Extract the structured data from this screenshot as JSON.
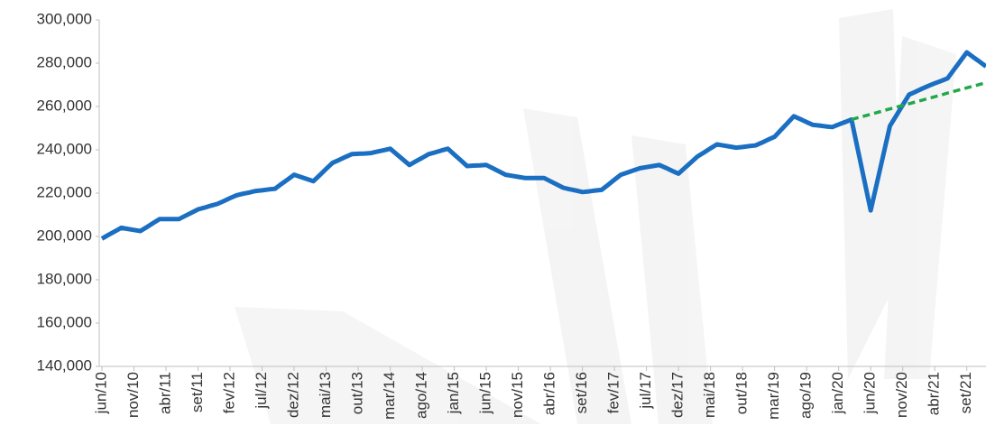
{
  "chart_data": {
    "type": "line",
    "categories": [
      "jun/10",
      null,
      null,
      null,
      null,
      "nov/10",
      null,
      null,
      null,
      null,
      "abr/11",
      null,
      null,
      null,
      null,
      "set/11",
      null,
      null,
      null,
      null,
      "fev/12",
      null,
      null,
      null,
      null,
      "jul/12",
      null,
      null,
      null,
      null,
      "dez/12",
      null,
      null,
      null,
      null,
      "mai/13",
      null,
      null,
      null,
      null,
      "out/13",
      null,
      null,
      null,
      null,
      "mar/14",
      null,
      null,
      null,
      null,
      "ago/14",
      null,
      null,
      null,
      null,
      "jan/15",
      null,
      null,
      null,
      null,
      "jun/15",
      null,
      null,
      null,
      null,
      "nov/15",
      null,
      null,
      null,
      null,
      "abr/16",
      null,
      null,
      null,
      null,
      "set/16",
      null,
      null,
      null,
      null,
      "fev/17",
      null,
      null,
      null,
      null,
      "jul/17",
      null,
      null,
      null,
      null,
      "dez/17",
      null,
      null,
      null,
      null,
      "mai/18",
      null,
      null,
      null,
      null,
      "out/18",
      null,
      null,
      null,
      null,
      "mar/19",
      null,
      null,
      null,
      null,
      "ago/19",
      null,
      null,
      null,
      null,
      "jan/20",
      null,
      null,
      null,
      null,
      "jun/20",
      null,
      null,
      null,
      null,
      "nov/20",
      null,
      null,
      null,
      null,
      "abr/21",
      null,
      null,
      null,
      null,
      "set/21",
      null,
      null,
      null
    ],
    "series": [
      {
        "color": "#1b6fc2",
        "values": [
          199000,
          200700,
          202300,
          204000,
          203500,
          203000,
          202500,
          204300,
          206200,
          208000,
          208000,
          208000,
          208000,
          209500,
          211000,
          212500,
          213300,
          214200,
          215000,
          216300,
          217700,
          219000,
          219700,
          220300,
          221000,
          221300,
          221700,
          222000,
          224200,
          226300,
          228500,
          227500,
          226500,
          225500,
          228300,
          231200,
          234000,
          235300,
          236700,
          238000,
          238200,
          238300,
          238500,
          239200,
          239800,
          240500,
          238000,
          235500,
          233000,
          234700,
          236300,
          238000,
          238800,
          239700,
          240500,
          237800,
          235200,
          232500,
          232700,
          232800,
          233000,
          231500,
          230000,
          228500,
          228000,
          227500,
          227000,
          227000,
          227000,
          227000,
          225500,
          224000,
          222500,
          221800,
          221200,
          220500,
          220800,
          221200,
          221500,
          223800,
          226200,
          228500,
          229500,
          230500,
          231500,
          232000,
          232500,
          233000,
          231700,
          230300,
          229000,
          231700,
          234300,
          237000,
          238800,
          240700,
          242500,
          242000,
          241500,
          241000,
          241300,
          241700,
          242000,
          243300,
          244700,
          246000,
          249200,
          252300,
          255500,
          254200,
          252800,
          251500,
          251200,
          250800,
          250500,
          251700,
          252800,
          254000,
          240000,
          226000,
          212000,
          225000,
          238000,
          251000,
          255800,
          260700,
          265500,
          266800,
          268200,
          269500,
          270700,
          271800,
          273000,
          277000,
          281000,
          285000,
          282800,
          280700,
          278500
        ]
      },
      {
        "color": "#21a84a",
        "dashed": true,
        "values": [
          null,
          null,
          null,
          null,
          null,
          null,
          null,
          null,
          null,
          null,
          null,
          null,
          null,
          null,
          null,
          null,
          null,
          null,
          null,
          null,
          null,
          null,
          null,
          null,
          null,
          null,
          null,
          null,
          null,
          null,
          null,
          null,
          null,
          null,
          null,
          null,
          null,
          null,
          null,
          null,
          null,
          null,
          null,
          null,
          null,
          null,
          null,
          null,
          null,
          null,
          null,
          null,
          null,
          null,
          null,
          null,
          null,
          null,
          null,
          null,
          null,
          null,
          null,
          null,
          null,
          null,
          null,
          null,
          null,
          null,
          null,
          null,
          null,
          null,
          null,
          null,
          null,
          null,
          null,
          null,
          null,
          null,
          null,
          null,
          null,
          null,
          null,
          null,
          null,
          null,
          null,
          null,
          null,
          null,
          null,
          null,
          null,
          null,
          null,
          null,
          null,
          null,
          null,
          null,
          null,
          null,
          null,
          null,
          null,
          null,
          null,
          null,
          null,
          null,
          null,
          null,
          null,
          254000,
          254800,
          255600,
          256400,
          257200,
          258100,
          258900,
          259700,
          260500,
          261300,
          262100,
          262900,
          263700,
          264500,
          265300,
          266200,
          267000,
          267800,
          268600,
          269400,
          270200,
          271000
        ]
      }
    ],
    "ylim": [
      140000,
      300000
    ],
    "yticks": [
      {
        "value": 140000,
        "label": "140,000"
      },
      {
        "value": 160000,
        "label": "160,000"
      },
      {
        "value": 180000,
        "label": "180,000"
      },
      {
        "value": 200000,
        "label": "200,000"
      },
      {
        "value": 220000,
        "label": "220,000"
      },
      {
        "value": 240000,
        "label": "240,000"
      },
      {
        "value": 260000,
        "label": "260,000"
      },
      {
        "value": 280000,
        "label": "280,000"
      },
      {
        "value": 300000,
        "label": "300,000"
      }
    ],
    "grid": false
  }
}
